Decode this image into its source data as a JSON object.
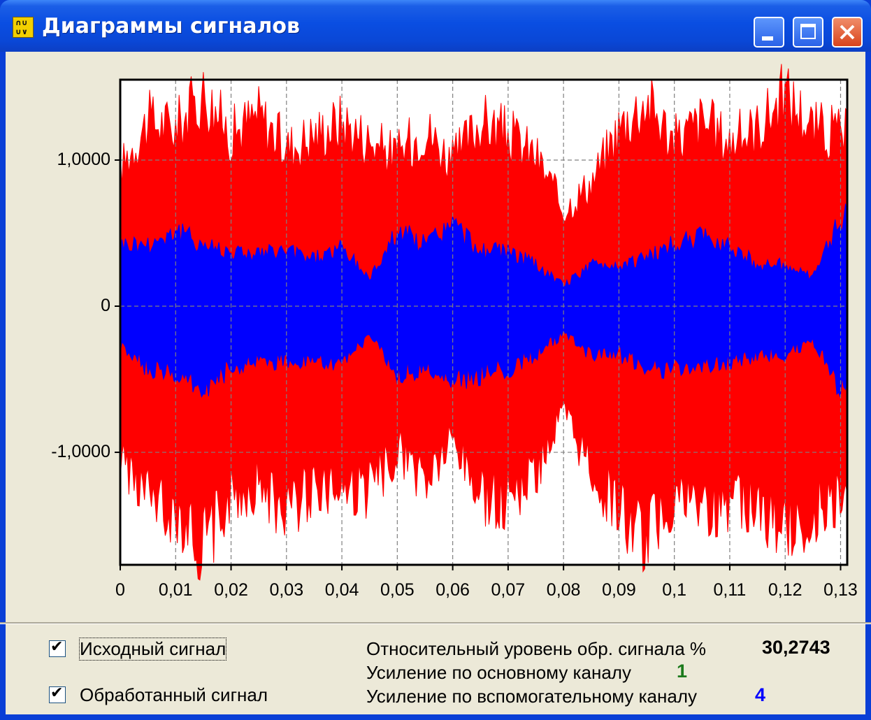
{
  "window": {
    "title": "Диаграммы сигналов",
    "icon": "signal-diagram-icon",
    "controls": [
      "minimize-icon",
      "maximize-icon",
      "close-icon"
    ]
  },
  "chart_data": {
    "type": "line",
    "title": "",
    "xlabel": "",
    "ylabel": "",
    "x_ticks": [
      "0",
      "0,01",
      "0,02",
      "0,03",
      "0,04",
      "0,05",
      "0,06",
      "0,07",
      "0,08",
      "0,09",
      "0,1",
      "0,11",
      "0,12",
      "0,13"
    ],
    "y_ticks": [
      "1,0000",
      "0",
      "-1,0000"
    ],
    "xlim": [
      0,
      0.1312
    ],
    "ylim": [
      -1.77,
      1.55
    ],
    "grid": true,
    "series": [
      {
        "color": "#ff0000",
        "x": [
          0,
          0.005,
          0.01,
          0.015,
          0.02,
          0.025,
          0.03,
          0.035,
          0.04,
          0.045,
          0.05,
          0.055,
          0.06,
          0.065,
          0.07,
          0.075,
          0.08,
          0.085,
          0.09,
          0.095,
          0.1,
          0.105,
          0.11,
          0.115,
          0.12,
          0.125,
          0.13
        ],
        "y_max": [
          1.0,
          1.35,
          1.3,
          1.55,
          1.25,
          1.4,
          1.15,
          1.25,
          1.35,
          1.2,
          1.1,
          1.3,
          1.05,
          1.35,
          1.25,
          1.1,
          0.7,
          0.9,
          1.3,
          1.5,
          1.2,
          1.35,
          1.2,
          1.3,
          1.55,
          1.3,
          1.25
        ],
        "y_min": [
          -1.1,
          -1.4,
          -1.5,
          -1.75,
          -1.4,
          -1.3,
          -1.5,
          -1.3,
          -1.35,
          -1.35,
          -1.05,
          -1.3,
          -1.0,
          -1.4,
          -1.4,
          -1.2,
          -0.8,
          -1.2,
          -1.5,
          -1.7,
          -1.4,
          -1.5,
          -1.4,
          -1.45,
          -1.65,
          -1.5,
          -1.35
        ]
      },
      {
        "color": "#0000ff",
        "x": [
          0,
          0.005,
          0.01,
          0.015,
          0.02,
          0.025,
          0.03,
          0.035,
          0.04,
          0.045,
          0.05,
          0.055,
          0.06,
          0.065,
          0.07,
          0.075,
          0.08,
          0.085,
          0.09,
          0.095,
          0.1,
          0.105,
          0.11,
          0.115,
          0.12,
          0.125,
          0.13
        ],
        "y_max": [
          0.45,
          0.45,
          0.55,
          0.45,
          0.4,
          0.38,
          0.4,
          0.35,
          0.42,
          0.2,
          0.55,
          0.45,
          0.6,
          0.4,
          0.4,
          0.3,
          0.15,
          0.3,
          0.3,
          0.35,
          0.45,
          0.5,
          0.45,
          0.3,
          0.3,
          0.2,
          0.65
        ],
        "y_min": [
          -0.3,
          -0.45,
          -0.5,
          -0.6,
          -0.45,
          -0.4,
          -0.4,
          -0.4,
          -0.45,
          -0.2,
          -0.5,
          -0.45,
          -0.55,
          -0.5,
          -0.45,
          -0.35,
          -0.2,
          -0.35,
          -0.35,
          -0.45,
          -0.45,
          -0.45,
          -0.4,
          -0.35,
          -0.35,
          -0.25,
          -0.6
        ]
      }
    ]
  },
  "controls": {
    "original_label": "Исходный сигнал",
    "original_checked": true,
    "processed_label": "Обработанный сигнал",
    "processed_checked": true
  },
  "info": {
    "relative_level_label": "Относительный уровень обр. сигнала %",
    "relative_level_value": "30,2743",
    "main_gain_label": "Усиление по основному каналу",
    "main_gain_value": "1",
    "main_gain_color": "#1c7a1c",
    "aux_gain_label": "Усиление по вспомогательному каналу",
    "aux_gain_value": "4",
    "aux_gain_color": "#0000ff"
  },
  "checkmark": "✔"
}
